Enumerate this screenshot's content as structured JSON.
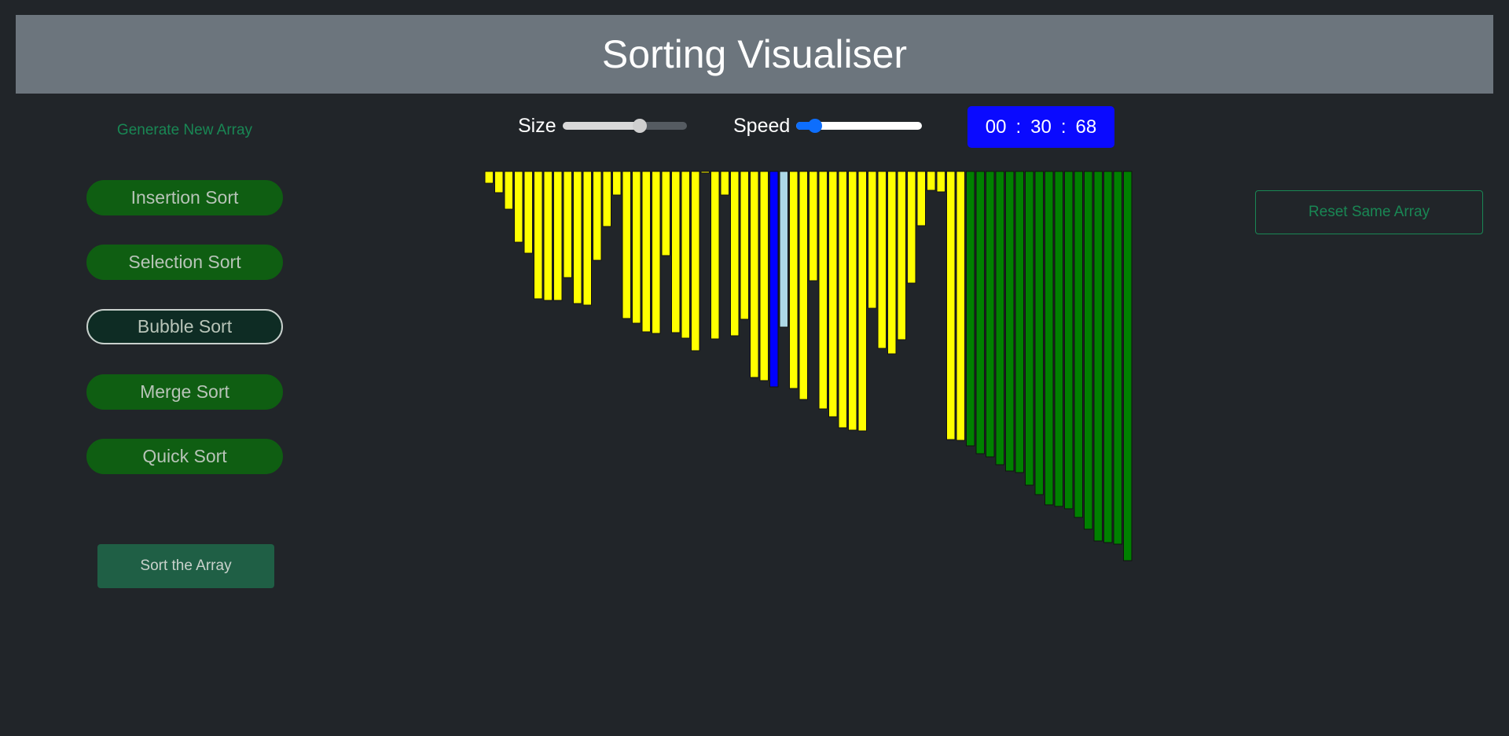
{
  "header": {
    "title": "Sorting Visualiser"
  },
  "sidebar": {
    "generate_label": "Generate New Array",
    "algorithms": [
      {
        "label": "Insertion Sort",
        "active": false
      },
      {
        "label": "Selection Sort",
        "active": false
      },
      {
        "label": "Bubble Sort",
        "active": true
      },
      {
        "label": "Merge Sort",
        "active": false
      },
      {
        "label": "Quick Sort",
        "active": false
      }
    ],
    "sort_label": "Sort the Array"
  },
  "controls": {
    "size_label": "Size",
    "size_value": 0.62,
    "speed_label": "Speed",
    "speed_value": 0.15
  },
  "timer": {
    "minutes": "00",
    "seconds": "30",
    "centis": "68",
    "sep": ":"
  },
  "reset_label": "Reset Same Array",
  "colors": {
    "background": "#212529",
    "header": "#6c757d",
    "unsorted": "#ffff00",
    "sorted": "#008000",
    "comparing": "#0000ff",
    "current": "#add8e6",
    "button": "#0f5e12",
    "timer": "#0a0aff"
  },
  "array": {
    "values": [
      15,
      27,
      48,
      90,
      104,
      162,
      164,
      164,
      135,
      168,
      170,
      113,
      70,
      30,
      187,
      193,
      204,
      206,
      107,
      205,
      212,
      228,
      2,
      213,
      30,
      209,
      188,
      262,
      266,
      274,
      198,
      276,
      290,
      139,
      302,
      312,
      326,
      329,
      330,
      174,
      225,
      232,
      214,
      142,
      69,
      24,
      26,
      341,
      342,
      349,
      359,
      363,
      373,
      381,
      383,
      399,
      411,
      424,
      426,
      429,
      440,
      455,
      470,
      472,
      474,
      495
    ],
    "states": [
      "u",
      "u",
      "u",
      "u",
      "u",
      "u",
      "u",
      "u",
      "u",
      "u",
      "u",
      "u",
      "u",
      "u",
      "u",
      "u",
      "u",
      "u",
      "u",
      "u",
      "u",
      "u",
      "u",
      "u",
      "u",
      "u",
      "u",
      "u",
      "u",
      "b",
      "c",
      "u",
      "u",
      "u",
      "u",
      "u",
      "u",
      "u",
      "u",
      "u",
      "u",
      "u",
      "u",
      "u",
      "u",
      "u",
      "u",
      "u",
      "u",
      "s",
      "s",
      "s",
      "s",
      "s",
      "s",
      "s",
      "s",
      "s",
      "s",
      "s",
      "s",
      "s",
      "s",
      "s",
      "s",
      "s"
    ]
  }
}
